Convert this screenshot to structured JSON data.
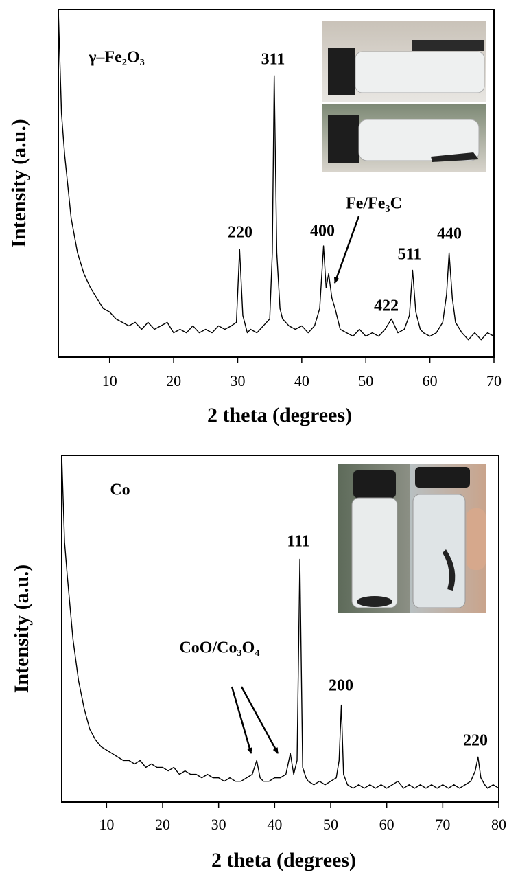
{
  "chart_data": [
    {
      "type": "line",
      "x_label": "2 theta (degrees)",
      "y_label": "Intensity (a.u.)",
      "color": "#000000",
      "xlim": [
        2,
        70
      ],
      "ylim": [
        0,
        100
      ],
      "xticks": [
        10,
        20,
        30,
        40,
        50,
        60,
        70
      ],
      "annotations": [
        "γ–Fe₂O₃",
        "311",
        "220",
        "400",
        "Fe/Fe₃C",
        "511",
        "422",
        "440"
      ],
      "x": [
        2,
        2.5,
        3,
        4,
        5,
        6,
        7,
        8,
        9,
        10,
        11,
        12,
        13,
        14,
        15,
        16,
        17,
        18,
        19,
        20,
        21,
        22,
        23,
        24,
        25,
        26,
        27,
        28,
        29,
        29.8,
        30.3,
        30.8,
        31.5,
        32,
        33,
        34,
        35,
        35.4,
        35.7,
        36.1,
        36.6,
        37,
        38,
        39,
        40,
        41,
        42,
        42.8,
        43.4,
        43.8,
        44.2,
        44.7,
        45.2,
        46,
        47,
        48,
        49,
        50,
        51,
        52,
        53,
        54,
        54.5,
        55,
        56,
        56.8,
        57.3,
        57.8,
        58.5,
        59,
        60,
        61,
        62,
        62.6,
        63,
        63.5,
        64,
        65,
        66,
        67,
        68,
        69,
        70
      ],
      "values": [
        100,
        70,
        58,
        40,
        30,
        24,
        20,
        17,
        14,
        13,
        11,
        10,
        9,
        10,
        8,
        10,
        8,
        9,
        10,
        7,
        8,
        7,
        9,
        7,
        8,
        7,
        9,
        8,
        9,
        10,
        31,
        12,
        7,
        8,
        7,
        9,
        11,
        30,
        81,
        30,
        14,
        11,
        9,
        8,
        9,
        7,
        9,
        14,
        32,
        20,
        24,
        17,
        14,
        8,
        7,
        6,
        8,
        6,
        7,
        6,
        8,
        11,
        9,
        7,
        8,
        12,
        25,
        13,
        8,
        7,
        6,
        7,
        10,
        18,
        30,
        17,
        10,
        7,
        5,
        7,
        5,
        7,
        6
      ]
    },
    {
      "type": "line",
      "x_label": "2 theta (degrees)",
      "y_label": "Intensity (a.u.)",
      "color": "#000000",
      "xlim": [
        2,
        80
      ],
      "ylim": [
        0,
        100
      ],
      "xticks": [
        10,
        20,
        30,
        40,
        50,
        60,
        70,
        80
      ],
      "annotations": [
        "Co",
        "111",
        "CoO/Co₃O₄",
        "200",
        "220"
      ],
      "x": [
        2,
        2.5,
        3,
        4,
        5,
        6,
        7,
        8,
        9,
        10,
        11,
        12,
        13,
        14,
        15,
        16,
        17,
        18,
        19,
        20,
        21,
        22,
        23,
        24,
        25,
        26,
        27,
        28,
        29,
        30,
        31,
        32,
        33,
        34,
        35,
        36,
        36.8,
        37.4,
        38,
        39,
        40,
        41,
        42,
        42.8,
        43.4,
        44,
        44.5,
        45,
        45.6,
        46,
        47,
        48,
        49,
        50,
        51,
        51.5,
        51.9,
        52.3,
        53,
        54,
        55,
        56,
        57,
        58,
        59,
        60,
        61,
        62,
        63,
        64,
        65,
        66,
        67,
        68,
        69,
        70,
        71,
        72,
        73,
        74,
        75,
        75.8,
        76.3,
        76.8,
        77.5,
        78,
        79,
        80
      ],
      "values": [
        100,
        75,
        65,
        47,
        35,
        27,
        21,
        18,
        16,
        15,
        14,
        13,
        12,
        12,
        11,
        12,
        10,
        11,
        10,
        10,
        9,
        10,
        8,
        9,
        8,
        8,
        7,
        8,
        7,
        7,
        6,
        7,
        6,
        6,
        7,
        8,
        12,
        7,
        6,
        6,
        7,
        7,
        8,
        14,
        8,
        12,
        70,
        10,
        7,
        6,
        5,
        6,
        5,
        6,
        7,
        12,
        28,
        8,
        5,
        4,
        5,
        4,
        5,
        4,
        5,
        4,
        5,
        6,
        4,
        5,
        4,
        5,
        4,
        5,
        4,
        5,
        4,
        5,
        4,
        5,
        6,
        9,
        13,
        7,
        5,
        4,
        5,
        4
      ]
    }
  ]
}
